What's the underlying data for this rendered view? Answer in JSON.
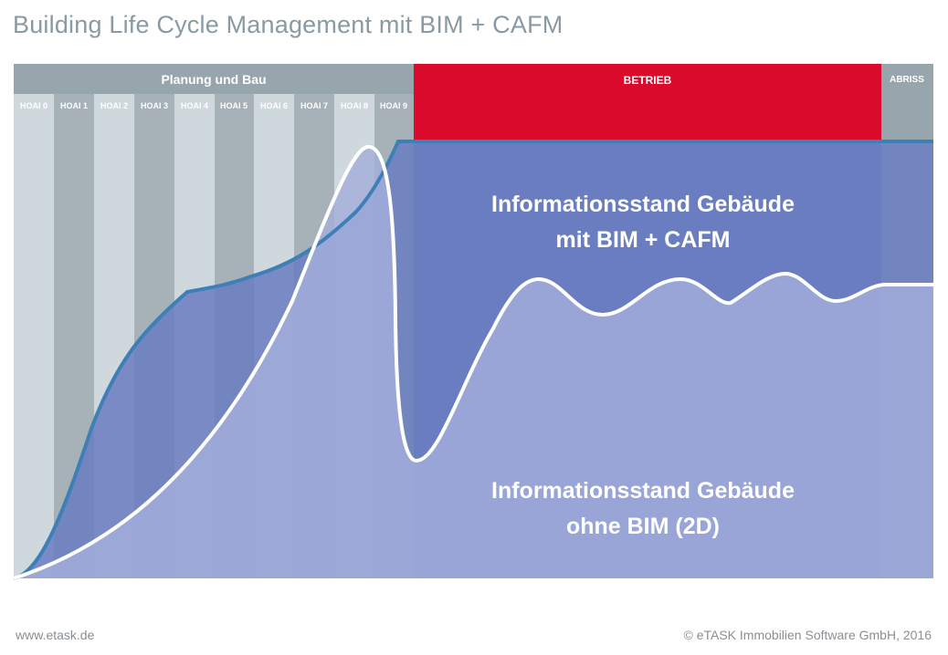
{
  "title": "Building Life Cycle Management mit BIM + CAFM",
  "phases": {
    "planung": "Planung und Bau",
    "betrieb": "BETRIEB",
    "abriss": "ABRISS"
  },
  "hoai_columns": [
    "HOAI 0",
    "HOAI 1",
    "HOAI 2",
    "HOAI 3",
    "HOAI 4",
    "HOAI 5",
    "HOAI 6",
    "HOAI 7",
    "HOAI 8",
    "HOAI 9"
  ],
  "labels": {
    "with_bim_line1": "Informationsstand Gebäude",
    "with_bim_line2": "mit BIM + CAFM",
    "without_bim_line1": "Informationsstand Gebäude",
    "without_bim_line2": "ohne BIM (2D)"
  },
  "footer": {
    "website": "www.etask.de",
    "copyright": "© eTASK Immobilien Software GmbH, 2016"
  },
  "colors": {
    "betrieb": "#d90a2c",
    "header_gray": "#97a5ad",
    "column_dark": "#a6b2b8",
    "column_light": "#cfd8dc",
    "bim_area": "#6a7dbf",
    "bim_line": "#3f7fb7",
    "no_bim_area": "#a3aedb",
    "no_bim_line": "#ffffff"
  }
}
